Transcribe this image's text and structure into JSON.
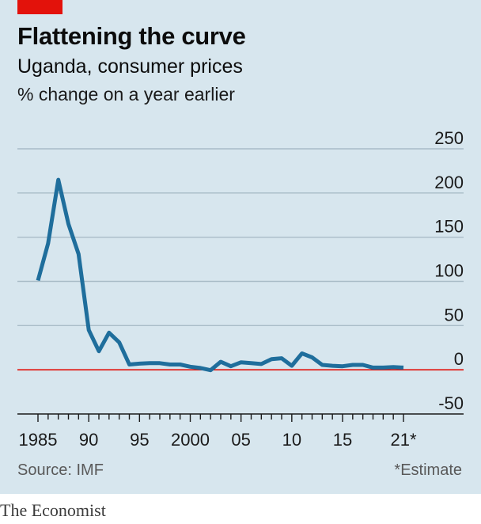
{
  "header": {
    "title": "Flattening the curve",
    "subtitle": "Uganda, consumer prices",
    "unit": "% change on a year earlier"
  },
  "footer": {
    "source": "Source: IMF",
    "note": "*Estimate",
    "brand": "The Economist"
  },
  "colors": {
    "panel": "#d7e6ee",
    "accent_tag": "#e3120b",
    "line": "#1f6e9c",
    "zero_line": "#e3120b",
    "gridline": "#a9bcc7"
  },
  "chart_data": {
    "type": "line",
    "title": "Flattening the curve",
    "subtitle": "Uganda, consumer prices",
    "ylabel": "% change on a year earlier",
    "xlabel": "",
    "ylim": [
      -50,
      250
    ],
    "xlim": [
      1984,
      2022
    ],
    "yticks": [
      250,
      200,
      150,
      100,
      50,
      0,
      -50
    ],
    "xtick_labels": [
      {
        "x": 1985,
        "label": "1985"
      },
      {
        "x": 1990,
        "label": "90"
      },
      {
        "x": 1995,
        "label": "95"
      },
      {
        "x": 2000,
        "label": "2000"
      },
      {
        "x": 2005,
        "label": "05"
      },
      {
        "x": 2010,
        "label": "10"
      },
      {
        "x": 2015,
        "label": "15"
      },
      {
        "x": 2021,
        "label": "21*"
      }
    ],
    "grid": true,
    "legend": "none",
    "series": [
      {
        "x": [
          1985,
          1986,
          1987,
          1988,
          1989,
          1990,
          1991,
          1992,
          1993,
          1994,
          1995,
          1996,
          1997,
          1998,
          1999,
          2000,
          2001,
          2002,
          2003,
          2004,
          2005,
          2006,
          2007,
          2008,
          2009,
          2010,
          2011,
          2012,
          2013,
          2014,
          2015,
          2016,
          2017,
          2018,
          2019,
          2020,
          2021
        ],
        "y": [
          101,
          143,
          215,
          165,
          131,
          45,
          21,
          42,
          31,
          6,
          7,
          7.5,
          7.5,
          6,
          6,
          3.5,
          2,
          -0.5,
          9,
          4,
          8.5,
          7.5,
          6.5,
          12,
          13,
          4.5,
          18.5,
          14,
          5.5,
          4.5,
          4,
          5.5,
          5.5,
          2.5,
          2.5,
          3,
          2.5
        ]
      }
    ]
  }
}
